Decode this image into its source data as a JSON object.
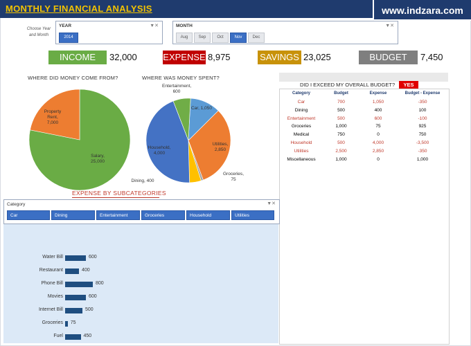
{
  "header": {
    "title": "MONTHLY FINANCIAL ANALYSIS",
    "brand": "www.indzara.com"
  },
  "selector": {
    "hint": "Choose Year and Month"
  },
  "year_slicer": {
    "label": "YEAR",
    "selected": "2014"
  },
  "month_slicer": {
    "label": "MONTH",
    "months": [
      "Aug",
      "Sep",
      "Oct",
      "Nov",
      "Dec"
    ],
    "selected": "Nov"
  },
  "kpis": [
    {
      "label": "INCOME",
      "value": "32,000",
      "color": "#6aac45"
    },
    {
      "label": "EXPENSE",
      "value": "8,975",
      "color": "#c00000"
    },
    {
      "label": "SAVINGS",
      "value": "23,025",
      "color": "#c8920a"
    },
    {
      "label": "BUDGET",
      "value": "7,450",
      "color": "#7f7f7f"
    }
  ],
  "income_chart": {
    "title": "WHERE DID MONEY COME FROM?",
    "slices": [
      {
        "name": "Salary",
        "value": "25,000",
        "color": "#6aac45"
      },
      {
        "name": "Property Rent",
        "value": "7,000",
        "color": "#ed7d31"
      }
    ]
  },
  "expense_chart": {
    "title": "WHERE WAS MONEY SPENT?",
    "slices": [
      {
        "name": "Car",
        "value": "1,050",
        "color": "#5b9bd5"
      },
      {
        "name": "Utilities",
        "value": "2,850",
        "color": "#ed7d31"
      },
      {
        "name": "Groceries",
        "value": "75",
        "color": "#a5a5a5"
      },
      {
        "name": "Dining",
        "value": "400",
        "color": "#ffc000"
      },
      {
        "name": "Household",
        "value": "4,000",
        "color": "#4472c4"
      },
      {
        "name": "Entertainment",
        "value": "600",
        "color": "#70ad47"
      }
    ]
  },
  "budget": {
    "question": "DID I EXCEED MY OVERALL BUDGET?",
    "answer": "YES",
    "columns": [
      "Category",
      "Budget",
      "Expense",
      "Budget - Expense"
    ],
    "rows": [
      {
        "category": "Car",
        "budget": "700",
        "expense": "1,050",
        "diff": "-350",
        "over": true
      },
      {
        "category": "Dining",
        "budget": "500",
        "expense": "400",
        "diff": "100",
        "over": false
      },
      {
        "category": "Entertainment",
        "budget": "500",
        "expense": "600",
        "diff": "-100",
        "over": true
      },
      {
        "category": "Groceries",
        "budget": "1,000",
        "expense": "75",
        "diff": "925",
        "over": false
      },
      {
        "category": "Medical",
        "budget": "750",
        "expense": "0",
        "diff": "750",
        "over": false
      },
      {
        "category": "Household",
        "budget": "500",
        "expense": "4,000",
        "diff": "-3,500",
        "over": true
      },
      {
        "category": "Utilities",
        "budget": "2,500",
        "expense": "2,850",
        "diff": "-350",
        "over": true
      },
      {
        "category": "Miscellaneous",
        "budget": "1,000",
        "expense": "0",
        "diff": "1,000",
        "over": false
      }
    ]
  },
  "subcategories": {
    "title": "EXPENSE BY SUBCATEGORIES",
    "slicer_label": "Category",
    "categories": [
      "Car",
      "Dining",
      "Entertainment",
      "Groceries",
      "Household",
      "Utilities"
    ]
  },
  "chart_data": [
    {
      "type": "pie",
      "title": "WHERE DID MONEY COME FROM?",
      "categories": [
        "Salary",
        "Property Rent"
      ],
      "values": [
        25000,
        7000
      ]
    },
    {
      "type": "pie",
      "title": "WHERE WAS MONEY SPENT?",
      "categories": [
        "Car",
        "Utilities",
        "Groceries",
        "Dining",
        "Household",
        "Entertainment"
      ],
      "values": [
        1050,
        2850,
        75,
        400,
        4000,
        600
      ]
    },
    {
      "type": "bar",
      "orientation": "horizontal",
      "title": "EXPENSE BY SUBCATEGORIES",
      "categories": [
        "Water Bill",
        "Restaurant",
        "Phone Bill",
        "Movies",
        "Internet Bill",
        "Groceries",
        "Fuel"
      ],
      "values": [
        600,
        400,
        800,
        600,
        500,
        75,
        450
      ],
      "xlim": [
        0,
        800
      ]
    }
  ]
}
